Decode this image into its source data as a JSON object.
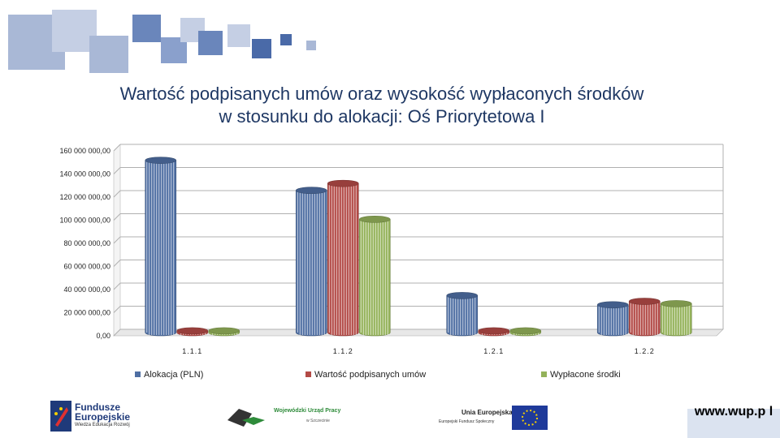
{
  "chart_data": {
    "type": "bar",
    "title": [
      "Wartość podpisanych umów oraz wysokość wypłaconych środków",
      "w stosunku do alokacji: Oś Priorytetowa I"
    ],
    "categories": [
      "1.1.1",
      "1.1.2",
      "1.2.1",
      "1.2.2"
    ],
    "series": [
      {
        "name": "Alokacja (PLN)",
        "color": "#4f6fa3",
        "values": [
          149000000,
          123000000,
          32000000,
          24000000
        ]
      },
      {
        "name": "Wartość podpisanych umów",
        "color": "#b34a46",
        "values": [
          1500000,
          129000000,
          1500000,
          27000000
        ]
      },
      {
        "name": "Wypłacone środki",
        "color": "#94b25a",
        "values": [
          1500000,
          98000000,
          1500000,
          25000000
        ]
      }
    ],
    "y_ticks": [
      "0,00",
      "20 000 000,00",
      "40 000 000,00",
      "60 000 000,00",
      "80 000 000,00",
      "100 000 000,00",
      "120 000 000,00",
      "140 000 000,00",
      "160 000 000,00"
    ],
    "ylim": [
      0,
      160000000
    ],
    "grid": true,
    "legend_position": "bottom"
  },
  "footer": {
    "logo_left_title": "Fundusze Europejskie",
    "logo_left_sub": "Wiedza Edukacja Rozwój",
    "logo_mid_title": "Wojewódzki Urząd Pracy",
    "logo_mid_sub": "w Szczecinie",
    "logo_right_title": "Unia Europejska",
    "logo_right_sub": "Europejski Fundusz Społeczny",
    "url": "www.wup.p l"
  }
}
